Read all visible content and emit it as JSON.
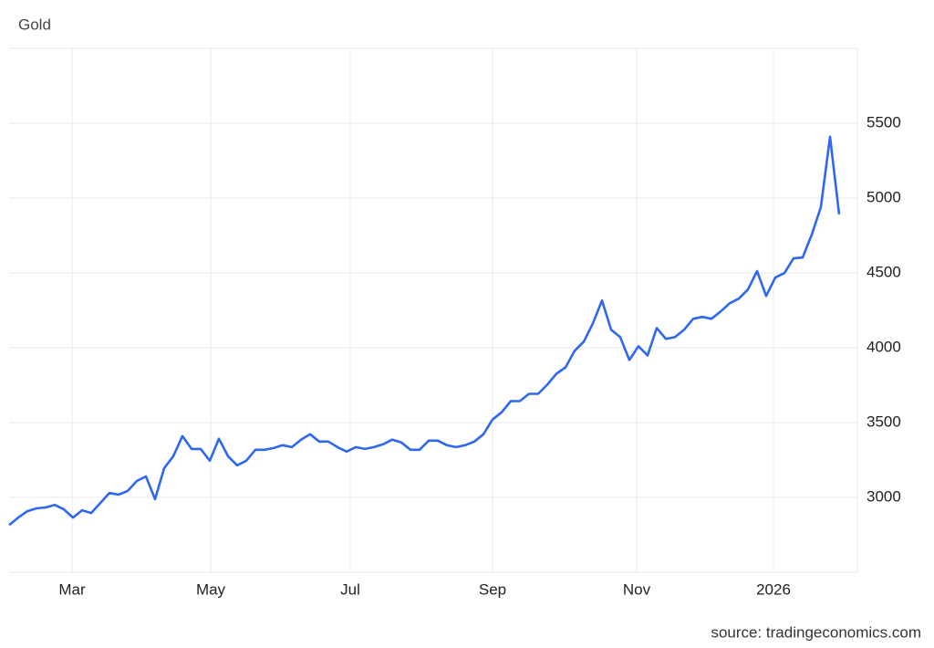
{
  "chart_data": {
    "type": "line",
    "title": "Gold",
    "source": "source: tradingeconomics.com",
    "color": "#2f68ef",
    "values": [
      2816,
      2865,
      2908,
      2927,
      2933,
      2950,
      2920,
      2865,
      2914,
      2896,
      2963,
      3030,
      3018,
      3043,
      3110,
      3140,
      2988,
      3196,
      3275,
      3410,
      3324,
      3324,
      3245,
      3392,
      3275,
      3214,
      3245,
      3318,
      3318,
      3330,
      3349,
      3336,
      3386,
      3422,
      3373,
      3373,
      3336,
      3306,
      3336,
      3324,
      3336,
      3355,
      3386,
      3367,
      3318,
      3318,
      3379,
      3379,
      3349,
      3336,
      3349,
      3373,
      3422,
      3520,
      3569,
      3643,
      3643,
      3692,
      3692,
      3753,
      3826,
      3869,
      3979,
      4040,
      4163,
      4316,
      4120,
      4071,
      3918,
      4010,
      3949,
      4132,
      4059,
      4071,
      4120,
      4193,
      4206,
      4193,
      4242,
      4297,
      4328,
      4389,
      4512,
      4346,
      4469,
      4499,
      4597,
      4603,
      4756,
      4940,
      5410,
      4891
    ],
    "xlim": [
      0,
      93
    ],
    "xticks": [
      {
        "value": 6.9,
        "label": "Mar"
      },
      {
        "value": 22.1,
        "label": "May"
      },
      {
        "value": 37.4,
        "label": "Jul"
      },
      {
        "value": 53,
        "label": "Sep"
      },
      {
        "value": 68.8,
        "label": "Nov"
      },
      {
        "value": 83.8,
        "label": "2026"
      }
    ],
    "ylim": [
      2500,
      6000
    ],
    "yticks": [
      3000,
      3500,
      4000,
      4500,
      5000,
      5500
    ],
    "grid": true
  }
}
